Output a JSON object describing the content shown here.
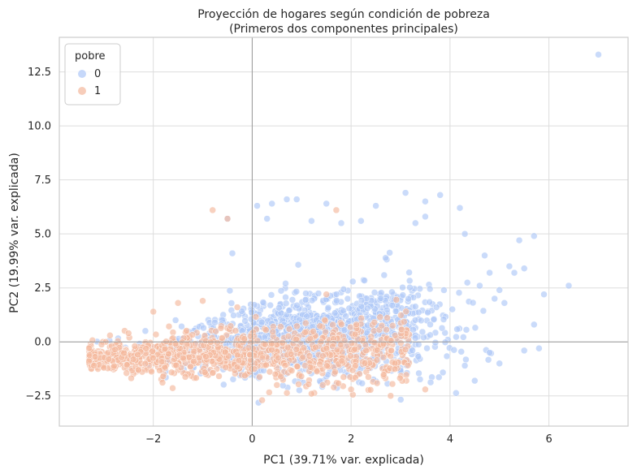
{
  "chart_data": {
    "type": "scatter",
    "title_line1": "Proyección de hogares según condición de pobreza",
    "title_line2": "(Primeros dos componentes principales)",
    "xlabel": "PC1 (39.71% var. explicada)",
    "ylabel": "PC2 (19.99% var. explicada)",
    "xlim": [
      -3.9,
      7.6
    ],
    "ylim": [
      -3.9,
      14.1
    ],
    "xticks": [
      -2,
      0,
      2,
      4,
      6
    ],
    "xtick_labels": [
      "−2",
      "0",
      "2",
      "4",
      "6"
    ],
    "yticks": [
      -2.5,
      0.0,
      2.5,
      5.0,
      7.5,
      10.0,
      12.5
    ],
    "ytick_labels": [
      "−2.5",
      "0.0",
      "2.5",
      "5.0",
      "7.5",
      "10.0",
      "12.5"
    ],
    "grid": true,
    "reference_lines": {
      "x": 0,
      "y": 0
    },
    "legend": {
      "title": "pobre",
      "placement": "top-left",
      "entries": [
        {
          "label": "0",
          "color": "#aec7f8"
        },
        {
          "label": "1",
          "color": "#f4b89c"
        }
      ]
    },
    "series": [
      {
        "name": "0",
        "color": "#aec7f8",
        "cloud": {
          "x_range": [
            -3.2,
            5.2
          ],
          "x_center": 1.2,
          "y_center": 0.3,
          "y_spread": 1.1,
          "n": 1400
        },
        "points": [
          [
            7.0,
            13.3
          ],
          [
            6.4,
            2.6
          ],
          [
            5.8,
            -0.3
          ],
          [
            5.7,
            4.9
          ],
          [
            5.7,
            0.8
          ],
          [
            5.4,
            4.7
          ],
          [
            5.5,
            3.4
          ],
          [
            5.2,
            3.5
          ],
          [
            5.0,
            2.4
          ],
          [
            5.1,
            1.8
          ],
          [
            5.3,
            3.2
          ],
          [
            4.7,
            4.0
          ],
          [
            4.8,
            3.2
          ],
          [
            4.6,
            2.6
          ],
          [
            4.2,
            6.2
          ],
          [
            4.3,
            5.0
          ],
          [
            3.5,
            6.5
          ],
          [
            3.8,
            6.8
          ],
          [
            3.5,
            5.8
          ],
          [
            3.3,
            5.5
          ],
          [
            3.1,
            6.9
          ],
          [
            2.5,
            6.3
          ],
          [
            2.2,
            5.6
          ],
          [
            1.8,
            5.5
          ],
          [
            1.5,
            6.4
          ],
          [
            1.2,
            5.6
          ],
          [
            0.9,
            6.6
          ],
          [
            0.7,
            6.6
          ],
          [
            0.4,
            6.4
          ],
          [
            0.1,
            6.3
          ],
          [
            0.3,
            5.7
          ],
          [
            -0.5,
            5.7
          ],
          [
            -0.4,
            4.1
          ],
          [
            4.3,
            -1.1
          ],
          [
            4.8,
            -0.5
          ],
          [
            5.0,
            -1.0
          ],
          [
            4.5,
            -1.8
          ],
          [
            5.5,
            -0.4
          ],
          [
            4.9,
            2.0
          ],
          [
            5.9,
            2.2
          ]
        ]
      },
      {
        "name": "1",
        "color": "#f4b89c",
        "cloud": {
          "x_range": [
            -3.3,
            3.2
          ],
          "x_center": -0.6,
          "y_center": -0.6,
          "y_spread": 0.75,
          "n": 1100
        },
        "points": [
          [
            -0.8,
            6.1
          ],
          [
            -0.5,
            5.7
          ],
          [
            1.7,
            6.1
          ],
          [
            -3.2,
            -1.1
          ],
          [
            -3.0,
            -1.2
          ],
          [
            -2.9,
            -0.8
          ],
          [
            -2.5,
            0.4
          ],
          [
            -2.0,
            1.4
          ],
          [
            -1.5,
            1.8
          ],
          [
            -1.0,
            1.9
          ],
          [
            -0.3,
            1.6
          ],
          [
            0.5,
            -2.0
          ],
          [
            1.2,
            -2.4
          ],
          [
            2.0,
            -2.2
          ],
          [
            2.8,
            -2.5
          ],
          [
            3.5,
            -2.2
          ],
          [
            1.5,
            2.2
          ],
          [
            -1.8,
            -1.6
          ],
          [
            -2.3,
            -1.3
          ],
          [
            0.2,
            -2.7
          ]
        ]
      }
    ]
  }
}
